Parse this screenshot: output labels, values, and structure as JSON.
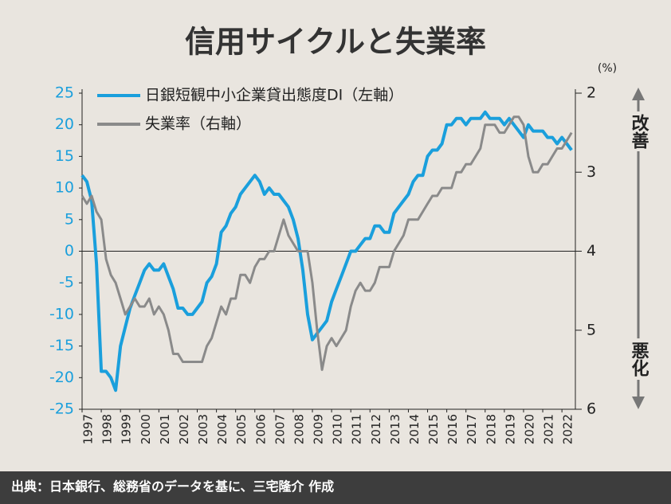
{
  "chart_data": {
    "type": "line",
    "title": "信用サイクルと失業率",
    "source": "出典：日本銀行、総務省のデータを基に、三宅隆介 作成",
    "y2_unit": "(%)",
    "annotations": [
      "改善",
      "悪化"
    ],
    "x": [
      1997,
      1997.25,
      1997.5,
      1997.75,
      1998,
      1998.25,
      1998.5,
      1998.75,
      1999,
      1999.25,
      1999.5,
      1999.75,
      2000,
      2000.25,
      2000.5,
      2000.75,
      2001,
      2001.25,
      2001.5,
      2001.75,
      2002,
      2002.25,
      2002.5,
      2002.75,
      2003,
      2003.25,
      2003.5,
      2003.75,
      2004,
      2004.25,
      2004.5,
      2004.75,
      2005,
      2005.25,
      2005.5,
      2005.75,
      2006,
      2006.25,
      2006.5,
      2006.75,
      2007,
      2007.25,
      2007.5,
      2007.75,
      2008,
      2008.25,
      2008.5,
      2008.75,
      2009,
      2009.25,
      2009.5,
      2009.75,
      2010,
      2010.25,
      2010.5,
      2010.75,
      2011,
      2011.25,
      2011.5,
      2011.75,
      2012,
      2012.25,
      2012.5,
      2012.75,
      2013,
      2013.25,
      2013.5,
      2013.75,
      2014,
      2014.25,
      2014.5,
      2014.75,
      2015,
      2015.25,
      2015.5,
      2015.75,
      2016,
      2016.25,
      2016.5,
      2016.75,
      2017,
      2017.25,
      2017.5,
      2017.75,
      2018,
      2018.25,
      2018.5,
      2018.75,
      2019,
      2019.25,
      2019.5,
      2019.75,
      2020,
      2020.25,
      2020.5,
      2020.75,
      2021,
      2021.25,
      2021.5,
      2021.75,
      2022,
      2022.25,
      2022.5
    ],
    "series": [
      {
        "name": "日銀短観中小企業貸出態度DI（左軸）",
        "color": "#1a9fdc",
        "axis": "y",
        "values": [
          12,
          11,
          8,
          -2,
          -19,
          -19,
          -20,
          -22,
          -15,
          -12,
          -9,
          -7,
          -5,
          -3,
          -2,
          -3,
          -3,
          -2,
          -4,
          -6,
          -9,
          -9,
          -10,
          -10,
          -9,
          -8,
          -5,
          -4,
          -2,
          3,
          4,
          6,
          7,
          9,
          10,
          11,
          12,
          11,
          9,
          10,
          9,
          9,
          8,
          7,
          5,
          2,
          -3,
          -10,
          -14,
          -13,
          -12,
          -11,
          -8,
          -6,
          -4,
          -2,
          0,
          0,
          1,
          2,
          2,
          4,
          4,
          3,
          3,
          6,
          7,
          8,
          9,
          11,
          12,
          12,
          15,
          16,
          16,
          17,
          20,
          20,
          21,
          21,
          20,
          21,
          21,
          21,
          22,
          21,
          21,
          21,
          20,
          21,
          20,
          19,
          18,
          20,
          19,
          19,
          19,
          18,
          18,
          17,
          18,
          17,
          16
        ]
      },
      {
        "name": "失業率（右軸）",
        "color": "#8a8a8a",
        "axis": "y2",
        "values": [
          3.3,
          3.4,
          3.3,
          3.5,
          3.6,
          4.1,
          4.3,
          4.4,
          4.6,
          4.8,
          4.7,
          4.6,
          4.7,
          4.7,
          4.6,
          4.8,
          4.7,
          4.8,
          5.0,
          5.3,
          5.3,
          5.4,
          5.4,
          5.4,
          5.4,
          5.4,
          5.2,
          5.1,
          4.9,
          4.7,
          4.8,
          4.6,
          4.6,
          4.3,
          4.3,
          4.4,
          4.2,
          4.1,
          4.1,
          4.0,
          4.0,
          3.8,
          3.6,
          3.8,
          3.9,
          4.0,
          4.0,
          4.0,
          4.4,
          5.0,
          5.5,
          5.2,
          5.1,
          5.2,
          5.1,
          5.0,
          4.7,
          4.5,
          4.4,
          4.5,
          4.5,
          4.4,
          4.2,
          4.2,
          4.2,
          4.0,
          3.9,
          3.8,
          3.6,
          3.6,
          3.6,
          3.5,
          3.4,
          3.3,
          3.3,
          3.2,
          3.2,
          3.2,
          3.0,
          3.0,
          2.9,
          2.9,
          2.8,
          2.7,
          2.4,
          2.4,
          2.4,
          2.5,
          2.5,
          2.4,
          2.3,
          2.3,
          2.4,
          2.8,
          3.0,
          3.0,
          2.9,
          2.9,
          2.8,
          2.7,
          2.7,
          2.6,
          2.5
        ]
      }
    ],
    "xlim": [
      1997,
      2022.7
    ],
    "xticks": [
      1997,
      1998,
      1999,
      2000,
      2001,
      2002,
      2003,
      2004,
      2005,
      2006,
      2007,
      2008,
      2009,
      2010,
      2011,
      2012,
      2013,
      2014,
      2015,
      2016,
      2017,
      2018,
      2019,
      2020,
      2021,
      2022
    ],
    "ylim": [
      -25,
      25
    ],
    "yticks": [
      -25,
      -20,
      -15,
      -10,
      -5,
      0,
      5,
      10,
      15,
      20,
      25
    ],
    "y2lim": [
      6,
      2
    ],
    "y2ticks": [
      2,
      3,
      4,
      5,
      6
    ],
    "legend": "upper left",
    "grid": false
  }
}
